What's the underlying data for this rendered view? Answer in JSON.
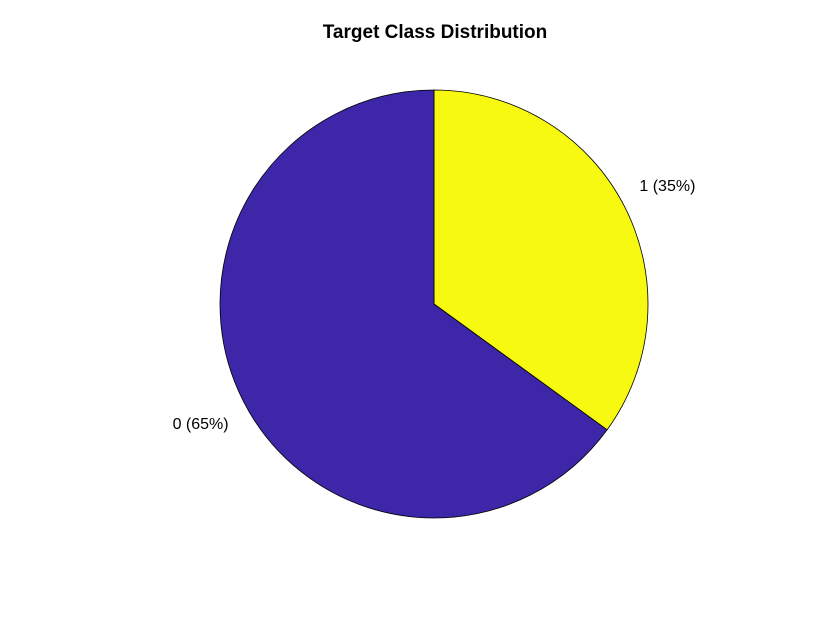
{
  "chart_data": {
    "type": "pie",
    "title": "Target Class Distribution",
    "slices": [
      {
        "category": "1",
        "percent": 35,
        "label": "1 (35%)",
        "color": "#F8F910"
      },
      {
        "category": "0",
        "percent": 65,
        "label": "0 (65%)",
        "color": "#3D26A8"
      }
    ],
    "start": "top",
    "direction": "clockwise",
    "legend": "none"
  }
}
